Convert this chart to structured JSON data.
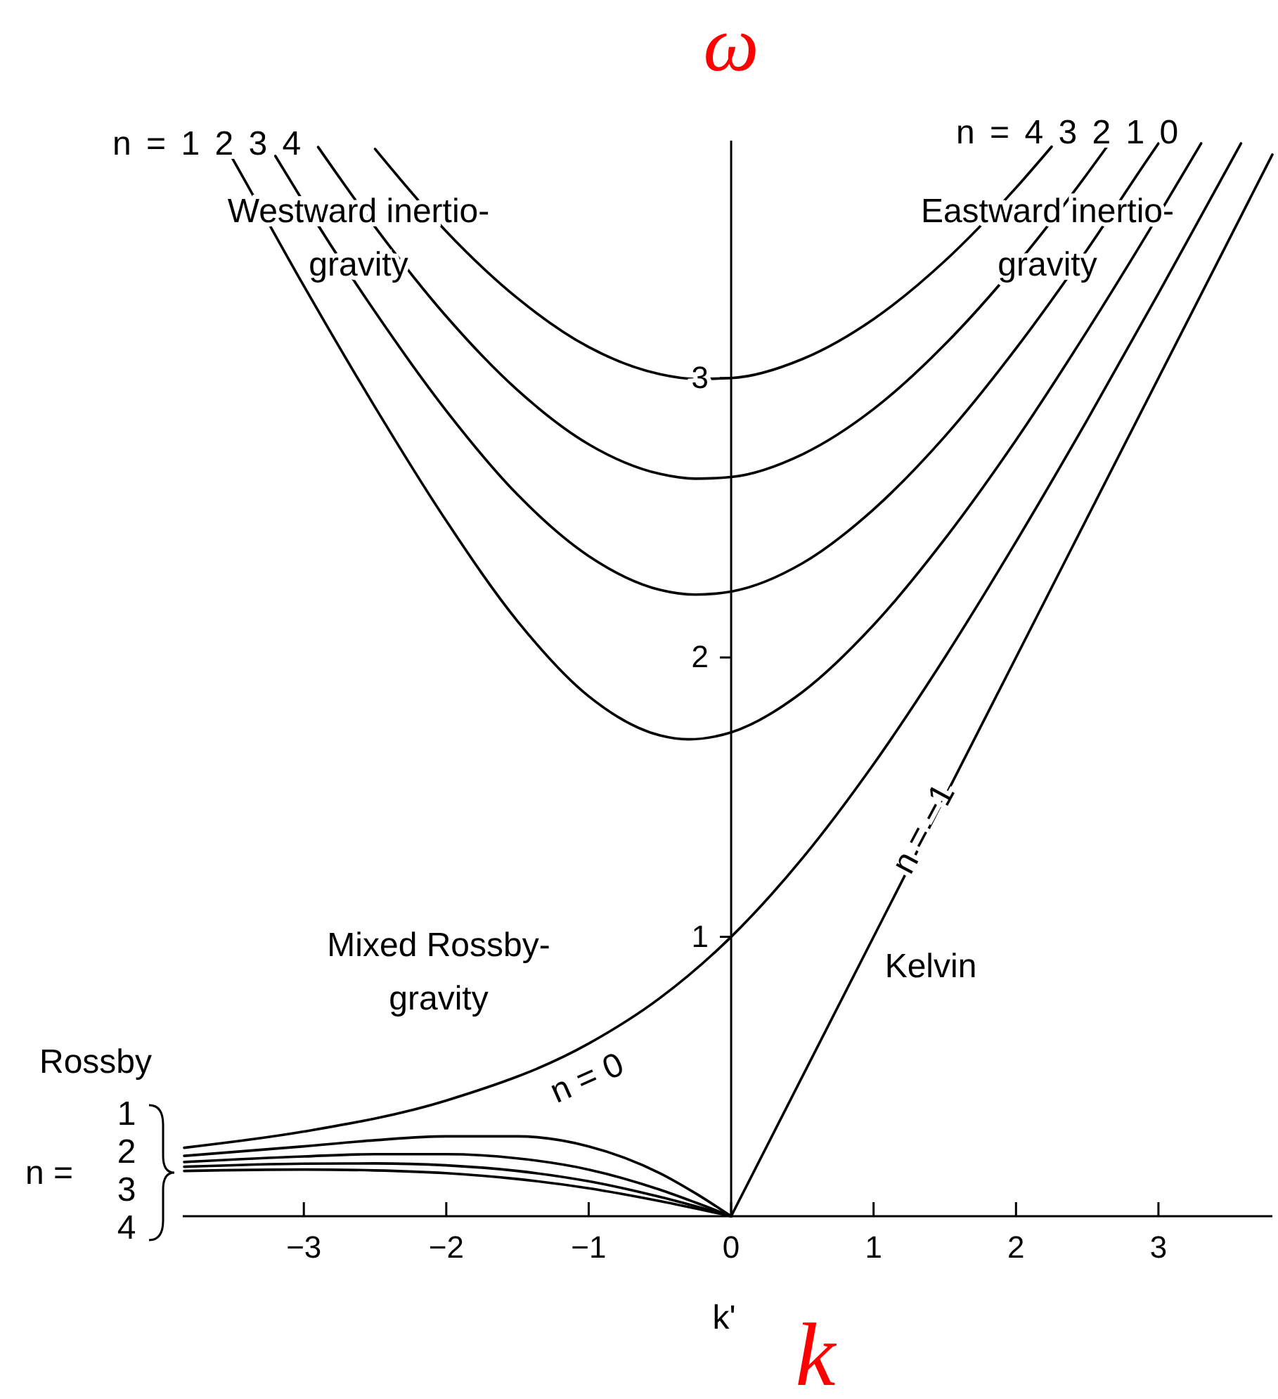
{
  "chart_data": {
    "type": "line",
    "title": "ω",
    "xlabel": "k",
    "xlim": [
      -3.85,
      3.8
    ],
    "ylim": [
      0,
      3.85
    ],
    "xticks": [
      -3,
      -2,
      -1,
      0,
      1,
      2,
      3
    ],
    "yticks": [
      1,
      2,
      3
    ],
    "series": [
      {
        "color": "#000000",
        "x": [
          -3.55,
          -3.5,
          -3,
          -2.5,
          -2,
          -1.5,
          -1,
          -0.5,
          -0.3,
          0,
          0.5,
          1,
          1.5,
          2,
          2.5,
          3,
          3.3
        ],
        "values": [
          3.83,
          3.785,
          3.33,
          2.896,
          2.489,
          2.13,
          1.861,
          1.721,
          1.707,
          1.732,
          1.876,
          2.116,
          2.424,
          2.778,
          3.169,
          3.583,
          3.84
        ]
      },
      {
        "color": "#000000",
        "x": [
          -3.2,
          -3,
          -2.5,
          -2,
          -1.5,
          -1,
          -0.5,
          -0.25,
          0,
          0.5,
          1,
          1.5,
          2,
          2.5,
          2.9,
          3
        ],
        "values": [
          3.795,
          3.628,
          3.237,
          2.883,
          2.583,
          2.363,
          2.242,
          2.225,
          2.236,
          2.337,
          2.53,
          2.791,
          3.106,
          3.46,
          3.765,
          3.84
        ]
      },
      {
        "color": "#000000",
        "x": [
          -2.9,
          -2.5,
          -2,
          -1.5,
          -1,
          -0.5,
          -0.25,
          0,
          0.5,
          1,
          1.5,
          2,
          2.5,
          2.65
        ],
        "values": [
          3.827,
          3.541,
          3.221,
          2.957,
          2.763,
          2.657,
          2.64,
          2.646,
          2.727,
          2.889,
          3.12,
          3.404,
          3.731,
          3.836
        ]
      },
      {
        "color": "#000000",
        "x": [
          -2.5,
          -2,
          -1.5,
          -1,
          -0.5,
          -0.25,
          0,
          0.5,
          1,
          1.5,
          2,
          2.25
        ],
        "values": [
          3.82,
          3.525,
          3.286,
          3.111,
          3.014,
          2.997,
          3,
          3.068,
          3.211,
          3.419,
          3.681,
          3.828
        ]
      },
      {
        "color": "#000000",
        "x": [
          -3.84,
          -3,
          -2,
          -1,
          -0.5,
          0,
          0.5,
          1,
          1.5,
          2,
          2.5,
          3,
          3.5,
          3.58
        ],
        "values": [
          0.245,
          0.303,
          0.414,
          0.618,
          0.781,
          1,
          1.281,
          1.618,
          2.0,
          2.414,
          2.85,
          3.303,
          3.766,
          3.84
        ]
      },
      {
        "color": "#000000",
        "x": [
          0,
          3.8
        ],
        "values": [
          0,
          3.8
        ]
      },
      {
        "color": "#000000",
        "x": [
          -3.84,
          -3,
          -2.5,
          -2,
          -1.5,
          -1,
          -0.5,
          -0.25,
          0
        ],
        "values": [
          0.216,
          0.25,
          0.272,
          0.286,
          0.286,
          0.25,
          0.154,
          0.082,
          0
        ]
      },
      {
        "color": "#000000",
        "x": [
          -3.84,
          -3,
          -2.5,
          -2,
          -1.5,
          -1,
          -0.5,
          -0.25,
          0
        ],
        "values": [
          0.194,
          0.214,
          0.222,
          0.222,
          0.207,
          0.167,
          0.095,
          0.049,
          0
        ]
      },
      {
        "color": "#000000",
        "x": [
          -3.84,
          -3,
          -2.5,
          -2,
          -1.5,
          -1,
          -0.5,
          0
        ],
        "values": [
          0.177,
          0.188,
          0.189,
          0.182,
          0.162,
          0.125,
          0.069,
          0
        ]
      },
      {
        "color": "#000000",
        "x": [
          -3.84,
          -3,
          -2.5,
          -2,
          -1.5,
          -1,
          -0.5,
          0
        ],
        "values": [
          0.162,
          0.167,
          0.164,
          0.154,
          0.133,
          0.1,
          0.054,
          0
        ]
      }
    ],
    "annotations": [
      "Westward inertio-gravity",
      "Eastward inertio-gravity",
      "Mixed Rossby-gravity",
      "Kelvin",
      "Rossby",
      "n = 0",
      "n = −1",
      "n = 1 2 3 4",
      "n = 4 3 2 1 0",
      "n =",
      "1",
      "2",
      "3",
      "4",
      "k'"
    ]
  }
}
